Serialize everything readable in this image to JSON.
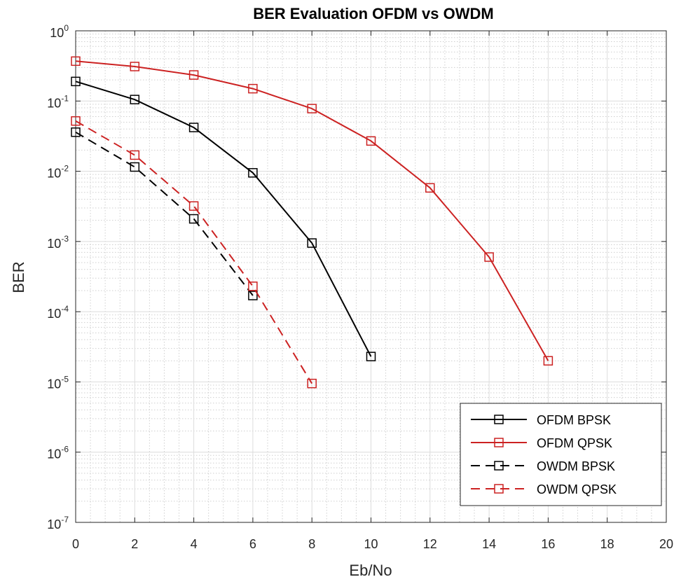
{
  "chart_data": {
    "type": "line",
    "title": "BER Evaluation OFDM vs OWDM",
    "xlabel": "Eb/No",
    "ylabel": "BER",
    "xlim": [
      0,
      20
    ],
    "ylim": [
      1e-07,
      1
    ],
    "yscale": "log",
    "grid": true,
    "minor_grid": true,
    "legend_position": "bottom-right",
    "x_ticks": [
      "0",
      "2",
      "4",
      "6",
      "8",
      "10",
      "12",
      "14",
      "16",
      "18",
      "20"
    ],
    "y_ticks": [
      {
        "base": "10",
        "exp": "0"
      },
      {
        "base": "10",
        "exp": "-1"
      },
      {
        "base": "10",
        "exp": "-2"
      },
      {
        "base": "10",
        "exp": "-3"
      },
      {
        "base": "10",
        "exp": "-4"
      },
      {
        "base": "10",
        "exp": "-5"
      },
      {
        "base": "10",
        "exp": "-6"
      },
      {
        "base": "10",
        "exp": "-7"
      }
    ],
    "series": [
      {
        "name": "OFDM BPSK",
        "color": "#000000",
        "dash": "solid",
        "marker": "square",
        "x": [
          0,
          2,
          4,
          6,
          8,
          10
        ],
        "y": [
          0.19,
          0.105,
          0.042,
          0.0095,
          0.00095,
          2.3e-05
        ]
      },
      {
        "name": "OFDM QPSK",
        "color": "#cc2222",
        "dash": "solid",
        "marker": "square",
        "x": [
          0,
          2,
          4,
          6,
          8,
          10,
          12,
          14,
          16
        ],
        "y": [
          0.37,
          0.31,
          0.235,
          0.15,
          0.078,
          0.027,
          0.0058,
          0.0006,
          2e-05
        ]
      },
      {
        "name": "OWDM BPSK",
        "color": "#000000",
        "dash": "dashed",
        "marker": "square",
        "x": [
          0,
          2,
          4,
          6
        ],
        "y": [
          0.036,
          0.0115,
          0.0021,
          0.00017
        ]
      },
      {
        "name": "OWDM QPSK",
        "color": "#cc2222",
        "dash": "dashed",
        "marker": "square",
        "x": [
          0,
          2,
          4,
          6,
          8
        ],
        "y": [
          0.052,
          0.017,
          0.0032,
          0.00023,
          9.5e-06
        ]
      }
    ]
  }
}
